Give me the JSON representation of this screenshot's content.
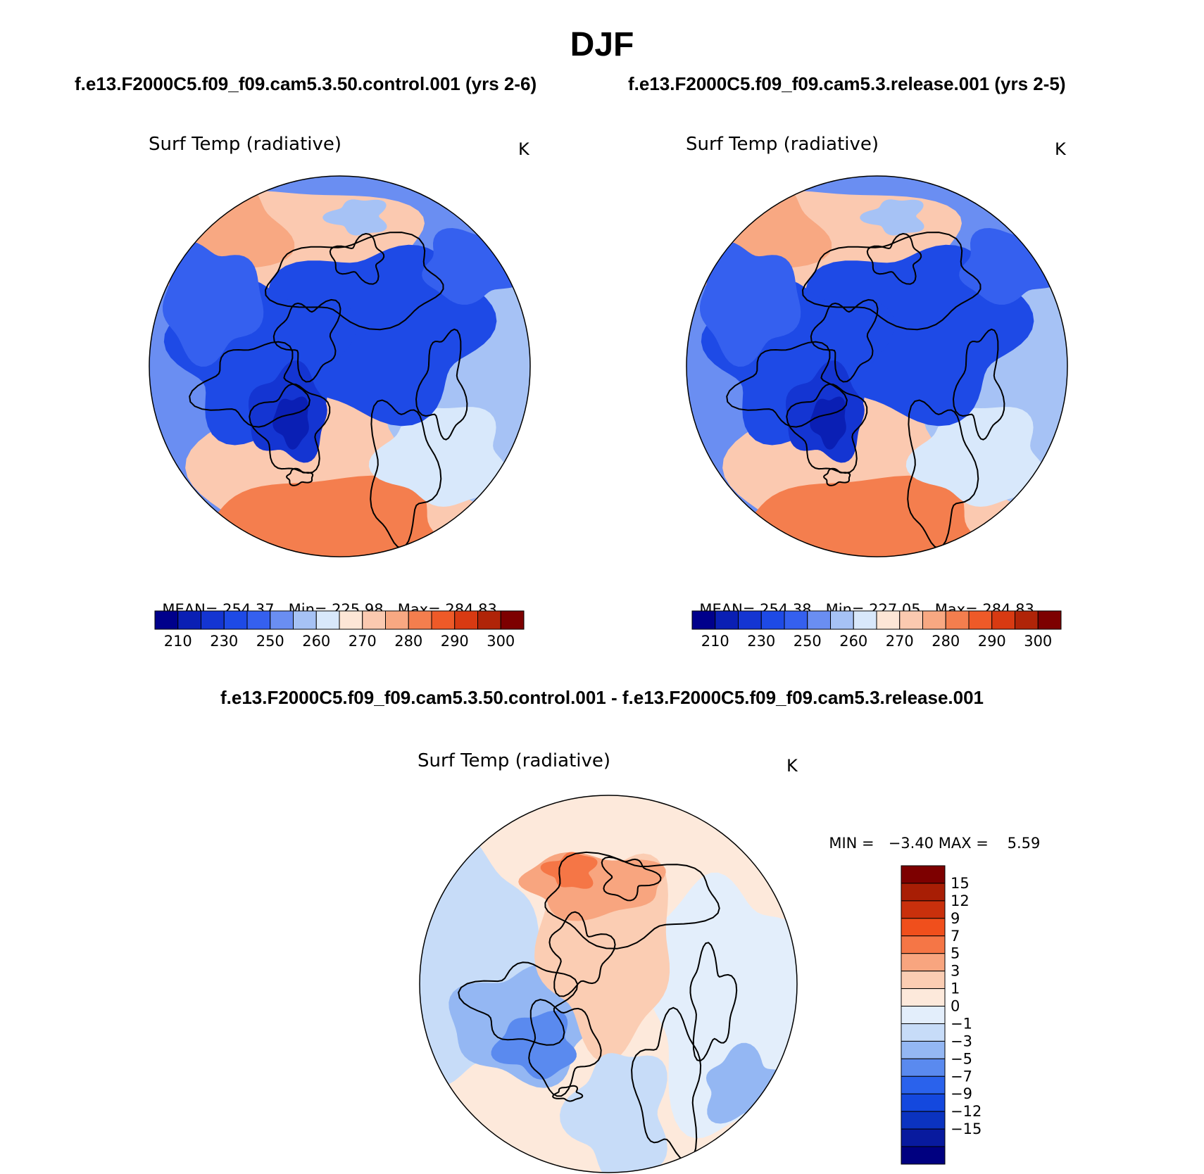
{
  "figure": {
    "season": "DJF",
    "case_a_header": "f.e13.F2000C5.f09_f09.cam5.3.50.control.001 (yrs 2-6)",
    "case_b_header": "f.e13.F2000C5.f09_f09.cam5.3.release.001 (yrs 2-5)",
    "diff_header": "f.e13.F2000C5.f09_f09.cam5.3.50.control.001 - f.e13.F2000C5.f09_f09.cam5.3.release.001"
  },
  "colors": {
    "abs_scale": [
      "#00008b",
      "#0a1fb4",
      "#1435d2",
      "#1e4ae6",
      "#3560ef",
      "#6a8ef2",
      "#a6c2f5",
      "#d8e8fb",
      "#fde6d6",
      "#fbc9b0",
      "#f8a882",
      "#f47e4e",
      "#ee5a28",
      "#d83a12",
      "#b02408",
      "#7d0000"
    ],
    "diff_scale": [
      "#000080",
      "#081a9e",
      "#0b33c0",
      "#1448de",
      "#2a62ec",
      "#5a8aef",
      "#94b7f3",
      "#c7dcf8",
      "#e3eefb",
      "#fde9db",
      "#fbcdb3",
      "#f8a57f",
      "#f57646",
      "#f04f1c",
      "#c9300c",
      "#a81e05",
      "#7d0000"
    ]
  },
  "panels": [
    {
      "id": "control",
      "title": "Surf Temp (radiative)",
      "units": "K",
      "mean_label": "MEAN=",
      "mean": "254.37",
      "min_label": "Min=",
      "min": "225.98",
      "max_label": "Max=",
      "max": "284.83",
      "colorbar_ticks": [
        "210",
        "230",
        "250",
        "260",
        "270",
        "280",
        "290",
        "300"
      ]
    },
    {
      "id": "release",
      "title": "Surf Temp (radiative)",
      "units": "K",
      "mean_label": "MEAN=",
      "mean": "254.38",
      "min_label": "Min=",
      "min": "227.05",
      "max_label": "Max=",
      "max": "284.83",
      "colorbar_ticks": [
        "210",
        "230",
        "250",
        "260",
        "270",
        "280",
        "290",
        "300"
      ]
    },
    {
      "id": "difference",
      "title": "Surf Temp (radiative)",
      "units": "K",
      "min_label": "MIN =",
      "min": "−3.40",
      "max_label": "MAX =",
      "max": "5.59",
      "colorbar_ticks": [
        "15",
        "12",
        "9",
        "7",
        "5",
        "3",
        "1",
        "0",
        "−1",
        "−3",
        "−5",
        "−7",
        "−9",
        "−12",
        "−15"
      ]
    }
  ]
}
